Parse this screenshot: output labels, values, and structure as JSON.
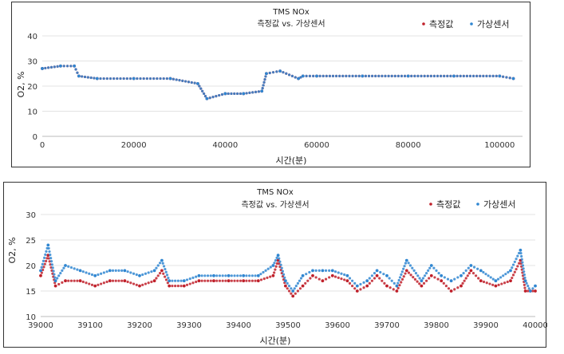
{
  "chart_data": [
    {
      "type": "scatter",
      "title": "TMS NOx",
      "subtitle": "측정값 vs. 가상센서",
      "xlabel": "시간(분)",
      "ylabel": "O2, %",
      "xlim": [
        0,
        105000
      ],
      "ylim": [
        0,
        40
      ],
      "xticks": [
        "0",
        "20000",
        "40000",
        "60000",
        "80000",
        "100000"
      ],
      "yticks": [
        "0",
        "10",
        "20",
        "30",
        "40"
      ],
      "grid": "horizontal",
      "legend": "top-right",
      "series": [
        {
          "name": "측정값",
          "color": "#c0202a",
          "marker": "dot",
          "x": [
            0,
            4000,
            7000,
            8000,
            12000,
            20000,
            28000,
            34000,
            36000,
            40000,
            44000,
            48000,
            49000,
            52000,
            56000,
            57000,
            60000,
            70000,
            80000,
            90000,
            100000,
            103000
          ],
          "y": [
            27,
            28,
            28,
            24,
            23,
            23,
            23,
            21,
            15,
            17,
            17,
            18,
            25,
            26,
            23,
            24,
            24,
            24,
            24,
            24,
            24,
            23
          ]
        },
        {
          "name": "가상센서",
          "color": "#2f86d1",
          "marker": "dot",
          "x": [
            0,
            4000,
            7000,
            8000,
            12000,
            20000,
            28000,
            34000,
            36000,
            40000,
            44000,
            48000,
            49000,
            52000,
            56000,
            57000,
            60000,
            70000,
            80000,
            90000,
            100000,
            103000
          ],
          "y": [
            27,
            28,
            28,
            24,
            23,
            23,
            23,
            21,
            15,
            17,
            17,
            18,
            25,
            26,
            23,
            24,
            24,
            24,
            24,
            24,
            24,
            23
          ]
        }
      ]
    },
    {
      "type": "scatter",
      "title": "TMS NOx",
      "subtitle": "측정값 vs. 가상센서",
      "xlabel": "시간(분)",
      "ylabel": "O2, %",
      "xlim": [
        39000,
        40000
      ],
      "ylim": [
        10,
        30
      ],
      "xticks": [
        "39000",
        "39100",
        "39200",
        "39300",
        "39400",
        "39500",
        "39600",
        "39700",
        "39800",
        "39900",
        "40000"
      ],
      "yticks": [
        "10",
        "15",
        "20",
        "25",
        "30"
      ],
      "grid": "horizontal",
      "legend": "top-right",
      "series": [
        {
          "name": "측정값",
          "color": "#c0202a",
          "marker": "dot",
          "x": [
            39000,
            39015,
            39030,
            39050,
            39080,
            39110,
            39140,
            39170,
            39200,
            39230,
            39245,
            39260,
            39290,
            39320,
            39350,
            39380,
            39410,
            39440,
            39470,
            39480,
            39495,
            39510,
            39530,
            39550,
            39570,
            39590,
            39620,
            39640,
            39660,
            39680,
            39700,
            39720,
            39740,
            39770,
            39790,
            39810,
            39830,
            39850,
            39870,
            39890,
            39920,
            39950,
            39970,
            39980,
            39990,
            40000
          ],
          "y": [
            18,
            22,
            16,
            17,
            17,
            16,
            17,
            17,
            16,
            17,
            19,
            16,
            16,
            17,
            17,
            17,
            17,
            17,
            18,
            21,
            16,
            14,
            16,
            18,
            17,
            18,
            17,
            15,
            16,
            18,
            16,
            15,
            19,
            16,
            18,
            17,
            15,
            16,
            19,
            17,
            16,
            17,
            21,
            15,
            15,
            15
          ]
        },
        {
          "name": "가상센서",
          "color": "#2f86d1",
          "marker": "dot",
          "x": [
            39000,
            39015,
            39030,
            39050,
            39080,
            39110,
            39140,
            39170,
            39200,
            39230,
            39245,
            39260,
            39290,
            39320,
            39350,
            39380,
            39410,
            39440,
            39470,
            39480,
            39495,
            39510,
            39530,
            39550,
            39570,
            39590,
            39620,
            39640,
            39660,
            39680,
            39700,
            39720,
            39740,
            39770,
            39790,
            39810,
            39830,
            39850,
            39870,
            39890,
            39920,
            39950,
            39970,
            39980,
            39990,
            40000
          ],
          "y": [
            19,
            24,
            17,
            20,
            19,
            18,
            19,
            19,
            18,
            19,
            21,
            17,
            17,
            18,
            18,
            18,
            18,
            18,
            20,
            22,
            17,
            15,
            18,
            19,
            19,
            19,
            18,
            16,
            17,
            19,
            18,
            16,
            21,
            17,
            20,
            18,
            17,
            18,
            20,
            19,
            17,
            19,
            23,
            17,
            15,
            16
          ]
        }
      ]
    }
  ]
}
